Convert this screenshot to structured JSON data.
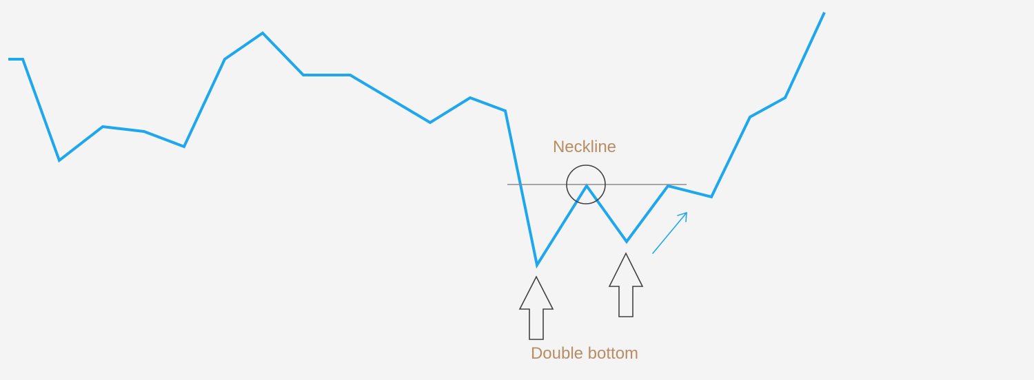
{
  "annotations": {
    "neckline_label": "Neckline",
    "double_bottom_label": "Double bottom"
  },
  "colors": {
    "background": "#f4f4f4",
    "price_line": "#1ea7ec",
    "annotation_text": "#b98c64",
    "neckline": "#8c8c8c",
    "outline": "#404040",
    "breakout_arrow": "#1ea7ec"
  },
  "icons": {
    "first_bottom_marker": "up-arrow-outline-icon",
    "second_bottom_marker": "up-arrow-outline-icon",
    "breakout_indicator": "diagonal-up-right-arrow-icon",
    "neckline_peak_marker": "circle-outline-icon"
  }
}
